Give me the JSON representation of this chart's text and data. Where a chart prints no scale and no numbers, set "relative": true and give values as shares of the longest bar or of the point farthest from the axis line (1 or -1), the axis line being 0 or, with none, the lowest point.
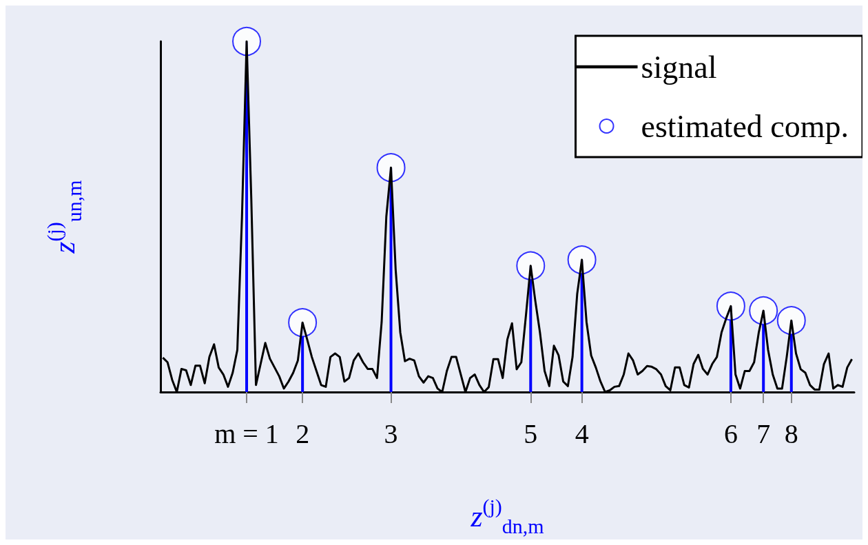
{
  "chart_data": {
    "type": "line",
    "relative": true,
    "xlabel": "z$^{(j)}$$_{dn,m}$",
    "ylabel": "z$^{(j)}$$_{un,m}$",
    "legend": "top right",
    "grid": false,
    "categories": [
      null,
      null,
      null,
      null,
      null,
      null,
      null,
      null,
      null,
      null,
      null,
      null,
      null,
      null,
      null,
      null,
      null,
      null,
      "m = 1",
      null,
      null,
      null,
      null,
      null,
      null,
      null,
      null,
      null,
      null,
      null,
      "2",
      null,
      null,
      null,
      null,
      null,
      null,
      null,
      null,
      null,
      null,
      null,
      null,
      null,
      null,
      null,
      null,
      null,
      null,
      "3",
      null,
      null,
      null,
      null,
      null,
      null,
      null,
      null,
      null,
      null,
      null,
      null,
      null,
      null,
      null,
      null,
      null,
      null,
      null,
      null,
      null,
      null,
      null,
      null,
      null,
      null,
      null,
      null,
      null,
      "5",
      null,
      null,
      null,
      null,
      null,
      null,
      null,
      null,
      null,
      null,
      "4",
      null,
      null,
      null,
      null,
      null,
      null,
      null,
      null,
      null,
      null,
      null,
      null,
      null,
      null,
      null,
      null,
      null,
      null,
      null,
      null,
      null,
      null,
      null,
      null,
      null,
      null,
      null,
      null,
      null,
      null,
      null,
      "6",
      null,
      null,
      null,
      null,
      null,
      null,
      "7",
      null,
      null,
      null,
      null,
      null,
      "8",
      null,
      null,
      null,
      null,
      null,
      null,
      null,
      null,
      null,
      null,
      null,
      null,
      null
    ],
    "series": [
      {
        "name": "signal",
        "color": "#000000",
        "marker": "none",
        "line_style": "solid",
        "values": [
          0.098,
          0.085,
          0.035,
          0.0,
          0.066,
          0.062,
          0.02,
          0.075,
          0.075,
          0.025,
          0.1,
          0.136,
          0.07,
          0.05,
          0.015,
          0.055,
          0.12,
          0.5,
          1.0,
          0.55,
          0.02,
          0.08,
          0.14,
          0.095,
          0.07,
          0.045,
          0.01,
          0.03,
          0.055,
          0.09,
          0.198,
          0.15,
          0.1,
          0.06,
          0.02,
          0.015,
          0.1,
          0.11,
          0.1,
          0.03,
          0.04,
          0.09,
          0.11,
          0.085,
          0.066,
          0.066,
          0.04,
          0.2,
          0.5,
          0.64,
          0.35,
          0.17,
          0.088,
          0.095,
          0.09,
          0.045,
          0.027,
          0.045,
          0.04,
          0.01,
          0.0,
          0.06,
          0.1,
          0.1,
          0.05,
          0.0,
          0.04,
          0.05,
          0.02,
          0.0,
          0.014,
          0.094,
          0.094,
          0.04,
          0.15,
          0.196,
          0.065,
          0.085,
          0.22,
          0.36,
          0.26,
          0.17,
          0.06,
          0.017,
          0.132,
          0.105,
          0.03,
          0.017,
          0.1,
          0.28,
          0.377,
          0.2,
          0.104,
          0.07,
          0.03,
          0.0,
          0.005,
          0.015,
          0.017,
          0.05,
          0.11,
          0.09,
          0.05,
          0.06,
          0.074,
          0.072,
          0.065,
          0.05,
          0.017,
          0.005,
          0.07,
          0.07,
          0.02,
          0.013,
          0.08,
          0.106,
          0.066,
          0.05,
          0.08,
          0.1,
          0.17,
          0.21,
          0.245,
          0.05,
          0.01,
          0.06,
          0.06,
          0.085,
          0.17,
          0.232,
          0.12,
          0.05,
          0.01,
          0.01,
          0.1,
          0.204,
          0.11,
          0.065,
          0.055,
          0.02,
          0.007,
          0.007,
          0.08,
          0.11,
          0.01,
          0.02,
          0.015,
          0.07,
          0.094
        ]
      },
      {
        "name": "estimated comp.",
        "type": "lollipop",
        "color": "#0000ff",
        "marker": "circle",
        "values": [
          null,
          null,
          null,
          null,
          null,
          null,
          null,
          null,
          null,
          null,
          null,
          null,
          null,
          null,
          null,
          null,
          null,
          null,
          1.0,
          null,
          null,
          null,
          null,
          null,
          null,
          null,
          null,
          null,
          null,
          null,
          0.198,
          null,
          null,
          null,
          null,
          null,
          null,
          null,
          null,
          null,
          null,
          null,
          null,
          null,
          null,
          null,
          null,
          null,
          null,
          0.64,
          null,
          null,
          null,
          null,
          null,
          null,
          null,
          null,
          null,
          null,
          null,
          null,
          null,
          null,
          null,
          null,
          null,
          null,
          null,
          null,
          null,
          null,
          null,
          null,
          null,
          null,
          null,
          null,
          null,
          0.36,
          null,
          null,
          null,
          null,
          null,
          null,
          null,
          null,
          null,
          null,
          0.377,
          null,
          null,
          null,
          null,
          null,
          null,
          null,
          null,
          null,
          null,
          null,
          null,
          null,
          null,
          null,
          null,
          null,
          null,
          null,
          null,
          null,
          null,
          null,
          null,
          null,
          null,
          null,
          null,
          null,
          null,
          null,
          0.245,
          null,
          null,
          null,
          null,
          null,
          null,
          0.232,
          null,
          null,
          null,
          null,
          null,
          0.204,
          null,
          null,
          null,
          null,
          null,
          null,
          null,
          null,
          null,
          null,
          null,
          null,
          null
        ]
      }
    ]
  }
}
